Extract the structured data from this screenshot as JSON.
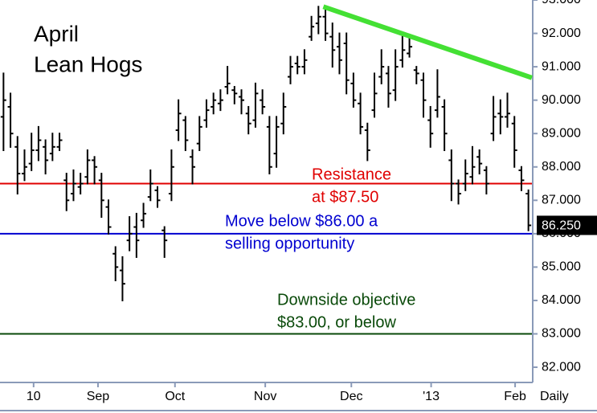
{
  "chart_data": {
    "type": "ohlc",
    "title": [
      "April",
      "Lean Hogs"
    ],
    "period_label": "Daily",
    "color": "#000000",
    "open": [
      89.5,
      89.8,
      88.6,
      87.8,
      88.1,
      88.5,
      88.6,
      88.4,
      88.6,
      87.6,
      87.2,
      87.4,
      87.7,
      88.2,
      87.6,
      86.8,
      85.4,
      84.9,
      85.8,
      86.2,
      86.4,
      87.1,
      87.3,
      86.1,
      87.2,
      89.1,
      89.4,
      88.3,
      88.7,
      89.4,
      89.8,
      89.9,
      90.4,
      90.3,
      90.1,
      89.6,
      89.4,
      90.0,
      89.2,
      88.4,
      89.3,
      90.7,
      91.1,
      91.0,
      91.9,
      92.3,
      92.5,
      91.9,
      91.6,
      91.7,
      90.5,
      89.9,
      89.1,
      89.7,
      90.7,
      90.8,
      90.3,
      91.2,
      91.4,
      90.9,
      90.6,
      89.4,
      89.7,
      89.8,
      88.2,
      87.5,
      87.5,
      87.7,
      88.3,
      87.9,
      89.0,
      89.6,
      89.5,
      89.3,
      87.9,
      87.2
    ],
    "high": [
      90.8,
      90.2,
      88.9,
      88.5,
      89.0,
      89.2,
      88.8,
      89.0,
      89.0,
      87.8,
      87.9,
      87.8,
      88.5,
      88.3,
      87.8,
      87.0,
      85.6,
      85.3,
      86.5,
      86.6,
      86.9,
      87.9,
      87.4,
      86.2,
      88.5,
      90.0,
      89.5,
      88.5,
      89.5,
      90.0,
      90.2,
      90.3,
      91.0,
      90.4,
      90.3,
      89.8,
      90.5,
      90.3,
      89.5,
      89.5,
      90.2,
      91.3,
      91.3,
      91.5,
      92.5,
      92.8,
      92.7,
      92.3,
      92.0,
      92.0,
      90.8,
      90.2,
      89.3,
      90.8,
      91.5,
      91.0,
      91.5,
      91.9,
      91.9,
      91.0,
      90.8,
      89.8,
      90.9,
      90.0,
      88.5,
      87.6,
      88.2,
      88.6,
      88.5,
      88.0,
      90.1,
      90.0,
      90.2,
      89.5,
      88.0,
      87.3
    ],
    "low": [
      88.5,
      88.6,
      87.2,
      87.6,
      87.9,
      88.2,
      87.8,
      88.2,
      88.5,
      86.7,
      87.0,
      87.2,
      87.5,
      87.5,
      86.5,
      86.0,
      84.6,
      84.0,
      85.5,
      85.3,
      86.2,
      87.0,
      86.8,
      85.3,
      87.0,
      88.8,
      88.5,
      87.5,
      88.5,
      89.2,
      89.6,
      89.7,
      90.2,
      89.9,
      89.6,
      89.0,
      89.2,
      89.6,
      87.8,
      88.0,
      89.0,
      90.5,
      90.8,
      90.8,
      91.8,
      92.0,
      91.8,
      91.0,
      90.8,
      90.2,
      89.8,
      89.0,
      88.2,
      89.5,
      90.5,
      89.8,
      90.0,
      91.0,
      91.3,
      90.5,
      89.5,
      88.6,
      89.5,
      88.5,
      87.0,
      86.9,
      87.3,
      87.5,
      87.8,
      87.2,
      88.8,
      89.0,
      89.2,
      88.0,
      87.3,
      86.1
    ],
    "close": [
      90.0,
      89.0,
      87.8,
      88.0,
      88.5,
      88.8,
      88.2,
      88.6,
      88.8,
      87.0,
      87.5,
      87.5,
      88.2,
      88.0,
      87.0,
      86.2,
      85.0,
      84.5,
      86.0,
      85.8,
      86.6,
      87.5,
      87.0,
      85.8,
      88.0,
      89.6,
      88.8,
      88.0,
      89.2,
      89.7,
      90.0,
      90.0,
      90.5,
      90.2,
      90.0,
      89.3,
      90.2,
      89.8,
      88.0,
      89.2,
      89.8,
      91.0,
      91.0,
      91.2,
      92.2,
      92.5,
      92.0,
      91.5,
      91.2,
      90.6,
      90.0,
      89.2,
      88.5,
      90.2,
      91.0,
      90.2,
      91.0,
      91.5,
      91.6,
      90.8,
      90.0,
      89.0,
      90.1,
      89.0,
      87.5,
      87.2,
      87.8,
      88.0,
      88.1,
      87.5,
      89.5,
      89.5,
      89.6,
      88.5,
      87.6,
      86.25
    ],
    "xlim": [
      0,
      76
    ],
    "xticks": [
      {
        "value": 4.8,
        "label": "10"
      },
      {
        "value": 14.0,
        "label": "Sep"
      },
      {
        "value": 25.0,
        "label": "Oct"
      },
      {
        "value": 37.9,
        "label": "Nov"
      },
      {
        "value": 50.2,
        "label": "Dec"
      },
      {
        "value": 61.6,
        "label": "'13"
      },
      {
        "value": 73.6,
        "label": "Feb"
      }
    ],
    "ylim": [
      81.64,
      93.0
    ],
    "yticks": [
      {
        "value": 82,
        "label": "82.000"
      },
      {
        "value": 83,
        "label": "83.000"
      },
      {
        "value": 84,
        "label": "84.000"
      },
      {
        "value": 85,
        "label": "85.000"
      },
      {
        "value": 86,
        "label": "86.000"
      },
      {
        "value": 87,
        "label": "87.000"
      },
      {
        "value": 88,
        "label": "88.000"
      },
      {
        "value": 89,
        "label": "89.000"
      },
      {
        "value": 90,
        "label": "90.000"
      },
      {
        "value": 91,
        "label": "91.000"
      },
      {
        "value": 92,
        "label": "92.000"
      },
      {
        "value": 93,
        "label": "93.000"
      }
    ],
    "last_price": {
      "value": 86.25,
      "label": "86.250"
    },
    "hlines": [
      {
        "value": 87.5,
        "color": "#e00000",
        "text": [
          "Resistance",
          "at $87.50"
        ]
      },
      {
        "value": 86.0,
        "color": "#0000d0",
        "text": [
          "Move below $86.00 a",
          "selling opportunity"
        ]
      },
      {
        "value": 83.0,
        "color": "#0a4a0a",
        "text": [
          "Downside objective",
          "$83.00, or below"
        ]
      }
    ],
    "trendline": {
      "x": [
        46.2,
        76
      ],
      "values": [
        92.8,
        90.67
      ],
      "color": "#44e034"
    }
  }
}
